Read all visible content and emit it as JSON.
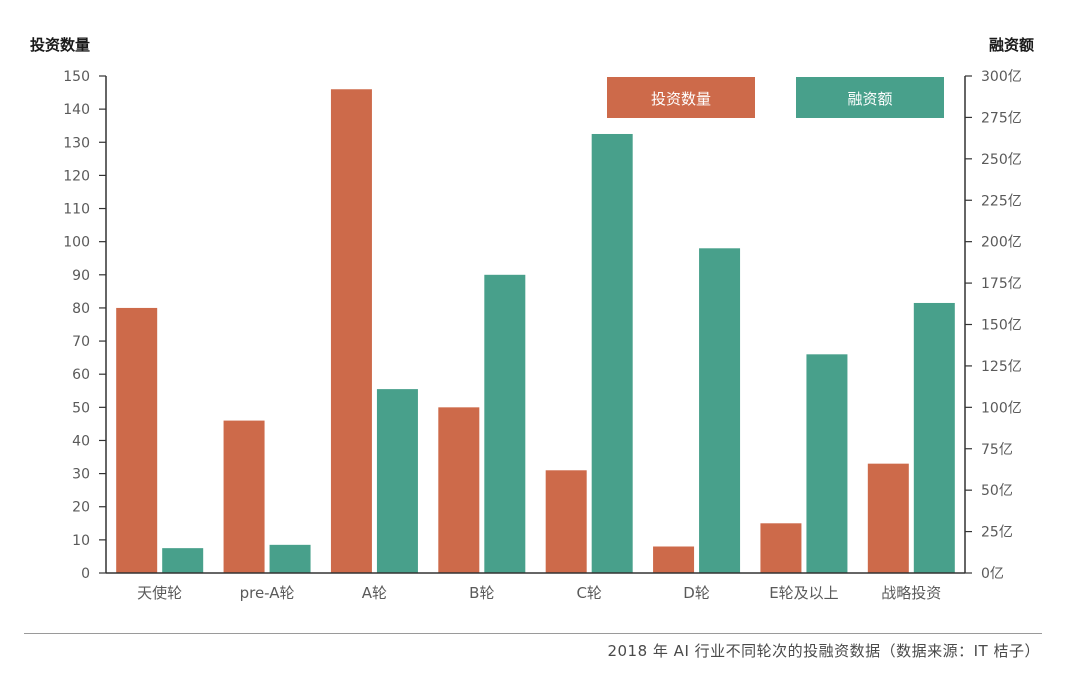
{
  "chart_data": {
    "type": "bar",
    "categories": [
      "天使轮",
      "pre-A轮",
      "A轮",
      "B轮",
      "C轮",
      "D轮",
      "E轮及以上",
      "战略投资"
    ],
    "series": [
      {
        "name": "投资数量",
        "axis": "left",
        "color": "#cd6a4a",
        "values": [
          80,
          46,
          146,
          50,
          31,
          8,
          15,
          33
        ]
      },
      {
        "name": "融资额",
        "axis": "right",
        "color": "#48a08b",
        "values": [
          15,
          17,
          111,
          180,
          265,
          196,
          132,
          163
        ]
      }
    ],
    "left_axis": {
      "label": "投资数量",
      "min": 0,
      "max": 150,
      "step": 10,
      "suffix": ""
    },
    "right_axis": {
      "label": "融资额",
      "min": 0,
      "max": 300,
      "step": 25,
      "suffix": "亿"
    },
    "legend_position": "top-right",
    "grid": false
  },
  "caption": "2018 年 AI 行业不同轮次的投融资数据（数据来源：IT 桔子）"
}
